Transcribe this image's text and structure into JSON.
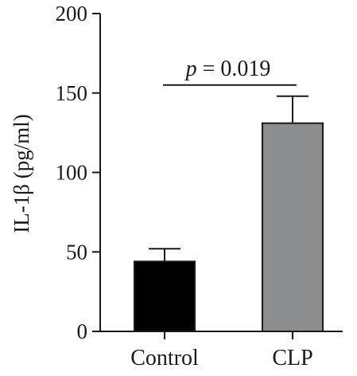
{
  "chart_data": {
    "type": "bar",
    "categories": [
      "Control",
      "CLP"
    ],
    "values": [
      44,
      131
    ],
    "errors": [
      8,
      17
    ],
    "bar_colors": [
      "#000000",
      "#8c8e8f"
    ],
    "ylabel": "IL-1β (pg/ml)",
    "ylim": [
      0,
      200
    ],
    "yticks": [
      "0",
      "50",
      "100",
      "150",
      "200"
    ],
    "annotation": {
      "text": "p = 0.019",
      "p_symbol": "p",
      "rest": " = 0.019",
      "line_y": 155
    },
    "grid": false
  }
}
